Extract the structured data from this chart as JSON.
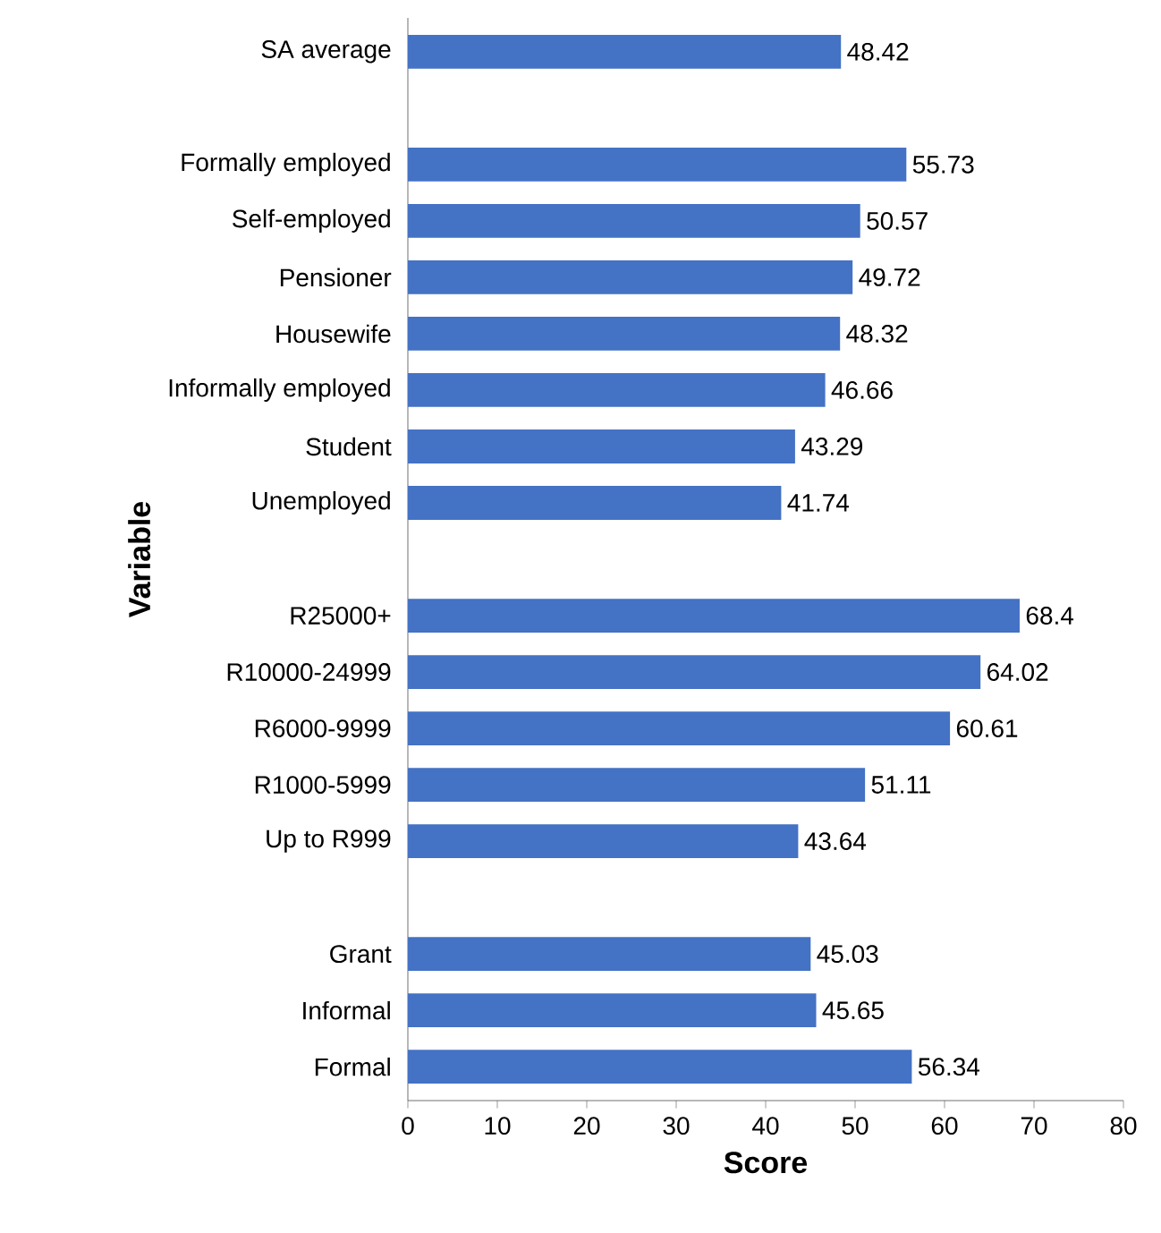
{
  "chart_data": {
    "type": "bar",
    "orientation": "horizontal",
    "xlabel": "Score",
    "ylabel": "Variable",
    "categories": [
      "SA average",
      null,
      "Formally employed",
      "Self-employed",
      "Pensioner",
      "Housewife",
      "Informally employed",
      "Student",
      "Unemployed",
      null,
      "R25000+",
      "R10000-24999",
      "R6000-9999",
      "R1000-5999",
      "Up to R999",
      null,
      "Grant",
      "Informal",
      "Formal"
    ],
    "values": [
      48.42,
      null,
      55.73,
      50.57,
      49.72,
      48.32,
      46.66,
      43.29,
      41.74,
      null,
      68.4,
      64.02,
      60.61,
      51.11,
      43.64,
      null,
      45.03,
      45.65,
      56.34
    ],
    "color": "#4472c4",
    "data_labels": true,
    "xlim": [
      0,
      80
    ],
    "xticks": [
      0,
      10,
      20,
      30,
      40,
      50,
      60,
      70,
      80
    ]
  }
}
